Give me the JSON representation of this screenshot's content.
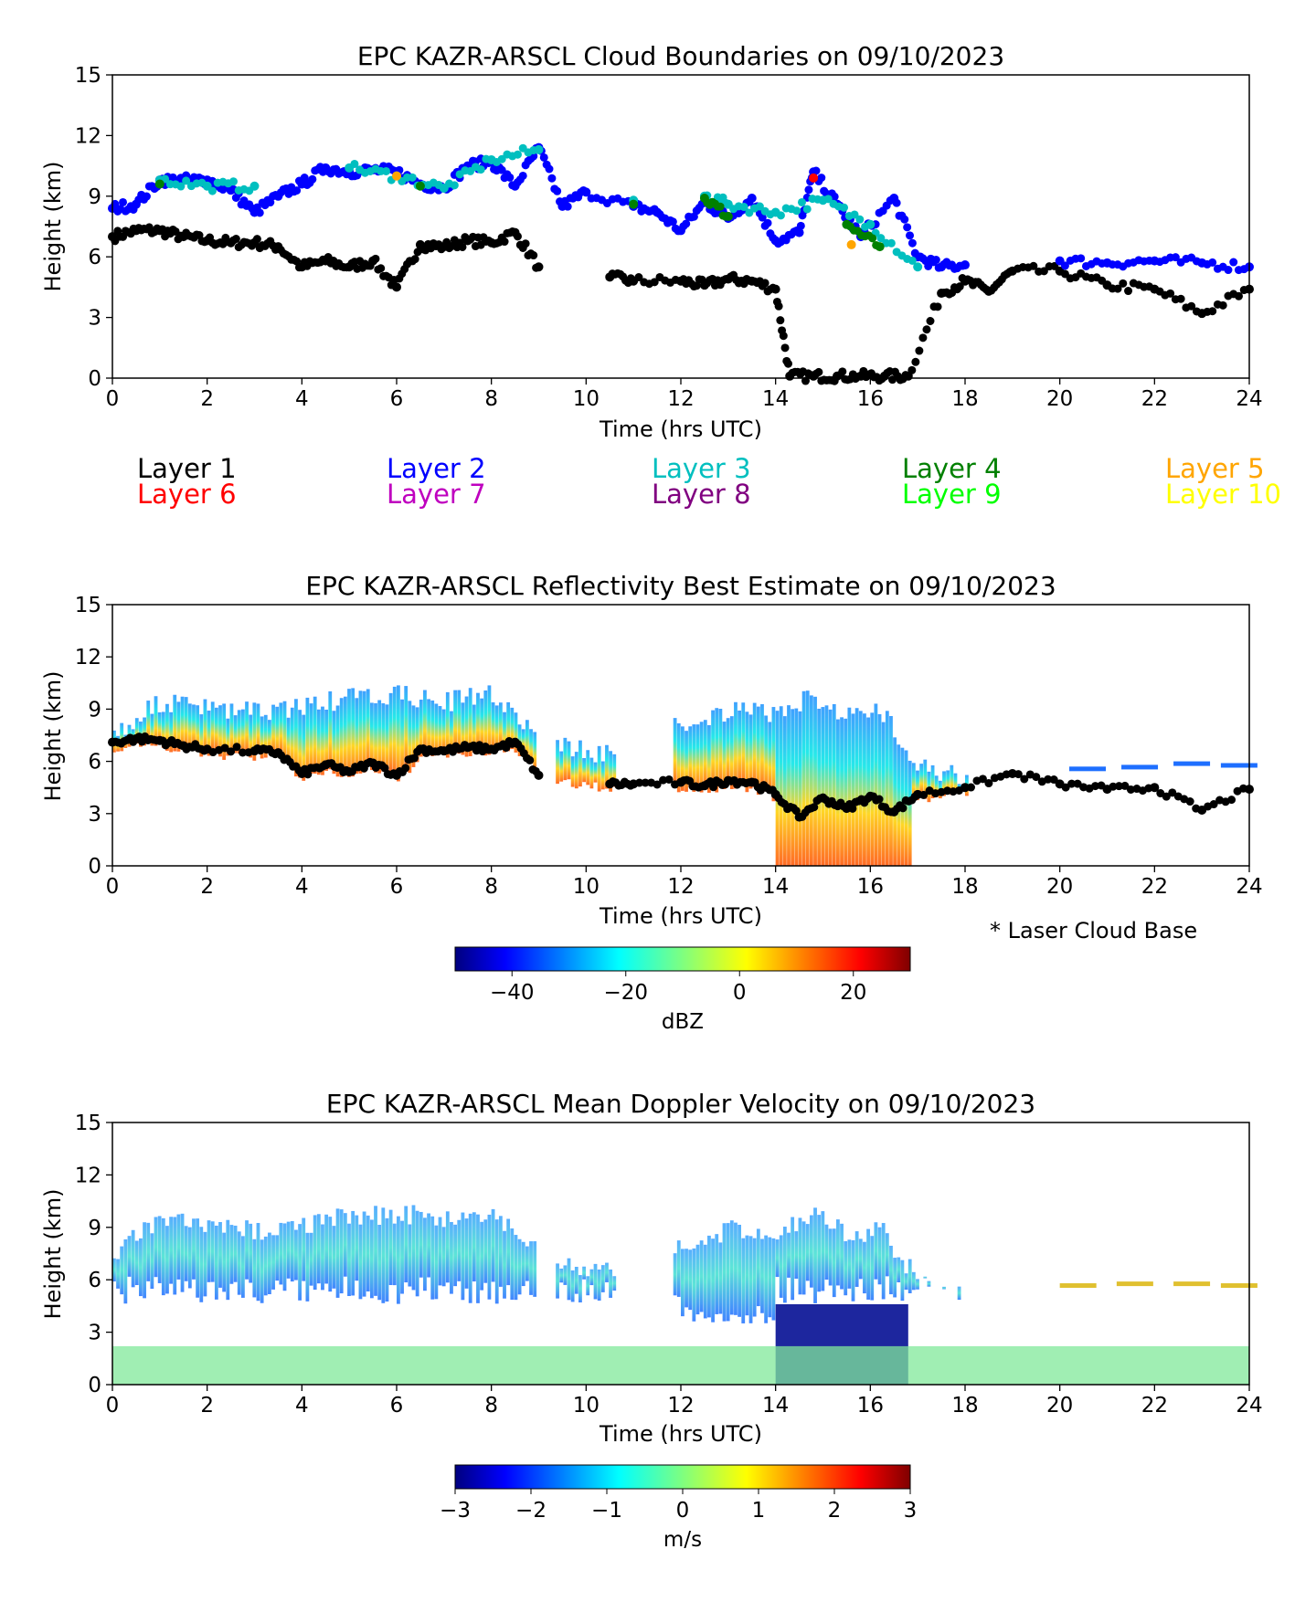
{
  "chart_data": [
    {
      "type": "scatter",
      "title": "EPC KAZR-ARSCL Cloud Boundaries on 09/10/2023",
      "xlabel": "Time (hrs UTC)",
      "ylabel": "Height (km)",
      "xlim": [
        0,
        24
      ],
      "ylim": [
        0,
        15
      ],
      "xticks": [
        "0",
        "2",
        "4",
        "6",
        "8",
        "10",
        "12",
        "14",
        "16",
        "18",
        "20",
        "22",
        "24"
      ],
      "yticks": [
        "0",
        "3",
        "6",
        "9",
        "12",
        "15"
      ],
      "legend": [
        {
          "label": "Layer 1",
          "color": "#000000"
        },
        {
          "label": "Layer 2",
          "color": "#0000ff"
        },
        {
          "label": "Layer 3",
          "color": "#00bfbf"
        },
        {
          "label": "Layer 4",
          "color": "#008000"
        },
        {
          "label": "Layer 5",
          "color": "#ffa500"
        },
        {
          "label": "Layer 6",
          "color": "#ff0000"
        },
        {
          "label": "Layer 7",
          "color": "#bf00bf"
        },
        {
          "label": "Layer 8",
          "color": "#800080"
        },
        {
          "label": "Layer 9",
          "color": "#00ff00"
        },
        {
          "label": "Layer 10",
          "color": "#ffff00"
        }
      ],
      "series": [
        {
          "name": "Layer 1",
          "color": "#000000",
          "x": [
            0,
            0.5,
            1,
            1.5,
            2,
            2.5,
            3,
            3.5,
            4,
            4.5,
            5,
            5.5,
            6,
            6.5,
            7,
            7.5,
            8,
            8.5,
            9,
            10.5,
            11,
            12,
            12.5,
            13,
            13.5,
            14,
            14.3,
            14.8,
            15.3,
            15.8,
            16.3,
            16.8,
            17.5,
            18,
            18.5,
            19,
            20,
            21,
            22,
            23,
            24
          ],
          "y": [
            7.0,
            7.3,
            7.3,
            7.0,
            6.8,
            6.7,
            6.7,
            6.5,
            5.5,
            5.8,
            5.5,
            5.8,
            4.5,
            6.6,
            6.5,
            6.8,
            6.7,
            7.2,
            5.5,
            5.0,
            4.8,
            4.8,
            4.6,
            4.9,
            4.8,
            4.4,
            0.1,
            0.1,
            0.1,
            0.1,
            0.1,
            0.1,
            4.2,
            4.8,
            4.3,
            5.3,
            5.3,
            4.6,
            4.4,
            3.2,
            4.4
          ]
        },
        {
          "name": "Layer 2",
          "color": "#0000ff",
          "x": [
            0,
            0.5,
            1,
            1.5,
            2,
            2.5,
            3,
            3.5,
            4,
            4.5,
            5,
            5.5,
            6,
            6.5,
            7,
            7.5,
            8,
            8.5,
            9,
            9.5,
            10,
            11,
            11.5,
            12,
            12.5,
            13,
            13.5,
            14,
            14.5,
            14.8,
            15.3,
            15.8,
            16.5,
            17,
            17.5,
            18,
            20,
            21,
            22,
            23,
            24
          ],
          "y": [
            8.4,
            8.6,
            9.8,
            9.8,
            9.8,
            9.3,
            8.2,
            9.0,
            9.6,
            10.4,
            10.2,
            10.3,
            10.2,
            9.6,
            9.4,
            10.5,
            10.7,
            9.5,
            11.4,
            8.5,
            9.2,
            8.5,
            8.2,
            7.3,
            8.7,
            7.9,
            8.9,
            6.8,
            7.2,
            10.2,
            8.6,
            7.0,
            8.9,
            6.0,
            5.5,
            5.6,
            5.8,
            5.7,
            5.8,
            5.7,
            5.5
          ]
        },
        {
          "name": "Layer 3",
          "color": "#00bfbf",
          "x": [
            1,
            2,
            3,
            5,
            6,
            7,
            8,
            9,
            11,
            12.5,
            13,
            14,
            15,
            16,
            17
          ],
          "y": [
            9.8,
            9.5,
            9.5,
            10.4,
            10.0,
            9.4,
            10.8,
            11.3,
            8.8,
            9.0,
            8.6,
            8.2,
            8.8,
            7.6,
            5.5
          ]
        },
        {
          "name": "Layer 4",
          "color": "#008000",
          "x": [
            1,
            6.5,
            11,
            12.5,
            13,
            15.5,
            16.2
          ],
          "y": [
            9.6,
            9.5,
            8.6,
            8.9,
            8.0,
            7.6,
            6.5
          ]
        },
        {
          "name": "Layer 5",
          "color": "#ffa500",
          "x": [
            6,
            15.6
          ],
          "y": [
            10.0,
            6.6
          ]
        },
        {
          "name": "Layer 6",
          "color": "#ff0000",
          "x": [
            14.8
          ],
          "y": [
            9.9
          ]
        }
      ]
    },
    {
      "type": "heatmap",
      "title": "EPC KAZR-ARSCL Reflectivity Best Estimate on 09/10/2023",
      "xlabel": "Time (hrs UTC)",
      "ylabel": "Height (km)",
      "xlim": [
        0,
        24
      ],
      "ylim": [
        0,
        15
      ],
      "xticks": [
        "0",
        "2",
        "4",
        "6",
        "8",
        "10",
        "12",
        "14",
        "16",
        "18",
        "20",
        "22",
        "24"
      ],
      "yticks": [
        "0",
        "3",
        "6",
        "9",
        "12",
        "15"
      ],
      "annotation": "* Laser Cloud Base",
      "colorbar": {
        "label": "dBZ",
        "range": [
          -50,
          30
        ],
        "ticks": [
          "−40",
          "−20",
          "0",
          "20"
        ],
        "colormap": "jet"
      },
      "laser_cloud_base": {
        "x": [
          0,
          0.5,
          1,
          1.5,
          2,
          3,
          3.5,
          4,
          4.5,
          5,
          5.5,
          6,
          6.5,
          7,
          7.5,
          8,
          8.5,
          9,
          10.5,
          11,
          12,
          12.5,
          13,
          13.5,
          14,
          14.5,
          15,
          15.5,
          16,
          16.5,
          17,
          18,
          19,
          20,
          21,
          22,
          23,
          24
        ],
        "y": [
          7.1,
          7.3,
          7.2,
          6.9,
          6.7,
          6.6,
          6.5,
          5.3,
          5.8,
          5.4,
          5.9,
          5.2,
          6.7,
          6.6,
          6.8,
          6.7,
          7.1,
          5.2,
          4.7,
          4.7,
          4.8,
          4.6,
          4.9,
          4.8,
          4.1,
          2.8,
          3.9,
          3.3,
          4.0,
          3.1,
          4.1,
          4.5,
          5.3,
          4.7,
          4.4,
          4.5,
          3.2,
          4.4
        ]
      }
    },
    {
      "type": "heatmap",
      "title": "EPC KAZR-ARSCL Mean Doppler Velocity on 09/10/2023",
      "xlabel": "Time (hrs UTC)",
      "ylabel": "Height (km)",
      "xlim": [
        0,
        24
      ],
      "ylim": [
        0,
        15
      ],
      "xticks": [
        "0",
        "2",
        "4",
        "6",
        "8",
        "10",
        "12",
        "14",
        "16",
        "18",
        "20",
        "22",
        "24"
      ],
      "yticks": [
        "0",
        "3",
        "6",
        "9",
        "12",
        "15"
      ],
      "colorbar": {
        "label": "m/s",
        "range": [
          -3,
          3
        ],
        "ticks": [
          "−3",
          "−2",
          "−1",
          "0",
          "1",
          "2",
          "3"
        ],
        "colormap": "jet"
      }
    }
  ]
}
